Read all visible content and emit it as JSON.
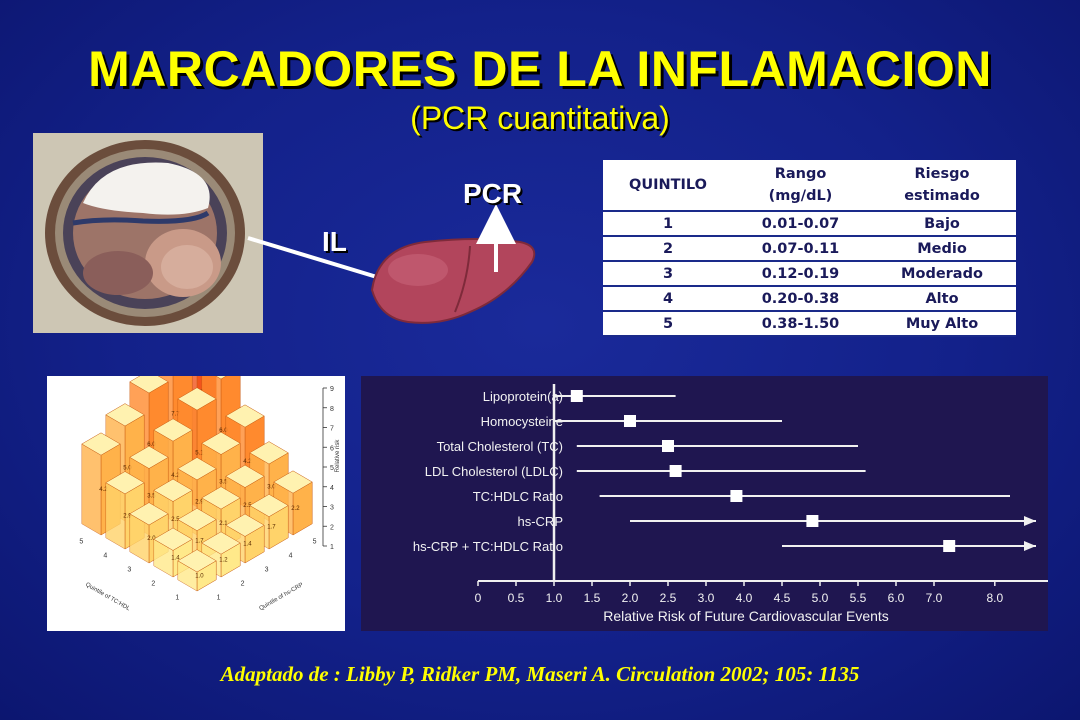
{
  "title": "MARCADORES DE LA INFLAMACION",
  "subtitle": "(PCR cuantitativa)",
  "diagram": {
    "label_il": "IL",
    "label_pcr": "PCR"
  },
  "table": {
    "headers": [
      "QUINTILO",
      "Rango (mg/dL)",
      "Riesgo estimado"
    ],
    "header_lines": {
      "h1": "QUINTILO",
      "h2a": "Rango",
      "h2b": "(mg/dL)",
      "h3a": "Riesgo",
      "h3b": "estimado"
    },
    "rows": [
      [
        "1",
        "0.01-0.07",
        "Bajo"
      ],
      [
        "2",
        "0.07-0.11",
        "Medio"
      ],
      [
        "3",
        "0.12-0.19",
        "Moderado"
      ],
      [
        "4",
        "0.20-0.38",
        "Alto"
      ],
      [
        "5",
        "0.38-1.50",
        "Muy Alto"
      ]
    ]
  },
  "chart_data": [
    {
      "type": "bar",
      "title": "",
      "zlabel": "Relative risk",
      "xlabel": "Quintile of hs-CRP",
      "ylabel": "Quintile of TC:HDL",
      "zticks": [
        "1",
        "2",
        "3",
        "4",
        "5",
        "6",
        "7",
        "8",
        "9"
      ],
      "x_ticks": [
        "1",
        "2",
        "3",
        "4",
        "5"
      ],
      "y_ticks": [
        "1",
        "2",
        "3",
        "4",
        "5"
      ],
      "visible_value_labels": [
        "8.",
        "7.7",
        "6.0",
        "6.0",
        "5.0",
        "5.1",
        "4.2",
        "4.2",
        "4.2",
        "3.5",
        "3.5",
        "3.0",
        "2.9",
        "2.9",
        "2.5",
        "2.5",
        "2.2",
        "2.1",
        "2.0",
        "1.7",
        "1.7",
        "1.4",
        "1.4",
        "1.2",
        "1.0"
      ]
    },
    {
      "type": "scatter",
      "title": "",
      "xlabel": "Relative Risk of Future Cardiovascular Events",
      "x_ticks": [
        "0",
        "0.5",
        "1.0",
        "1.5",
        "2.0",
        "2.5",
        "3.0",
        "4.0",
        "4.5",
        "5.0",
        "5.5",
        "6.0",
        "7.0",
        "8.0"
      ],
      "xlim": [
        0,
        8.5
      ],
      "series": [
        {
          "label": "Lipoprotein(a)",
          "value": 1.3,
          "ci": [
            1.0,
            2.6
          ]
        },
        {
          "label": "Homocysteine",
          "value": 2.0,
          "ci": [
            1.0,
            4.0
          ]
        },
        {
          "label": "Total Cholesterol (TC)",
          "value": 2.5,
          "ci": [
            1.3,
            5.0
          ]
        },
        {
          "label": "LDL Cholesterol (LDLC)",
          "value": 2.6,
          "ci": [
            1.3,
            5.1
          ]
        },
        {
          "label": "TC:HDLC Ratio",
          "value": 3.4,
          "ci": [
            1.6,
            7.0
          ]
        },
        {
          "label": "hs-CRP",
          "value": 4.4,
          "ci": [
            2.0,
            9.0
          ]
        },
        {
          "label": "hs-CRP + TC:HDLC Ratio",
          "value": 6.2,
          "ci": [
            4.0,
            9.5
          ]
        }
      ]
    }
  ],
  "citation": "Adaptado de : Libby P, Ridker PM, Maseri A. Circulation 2002; 105: 1135",
  "colors": {
    "background": "#13218a",
    "title": "#ffff00",
    "forest_bg": "#1f1650"
  }
}
